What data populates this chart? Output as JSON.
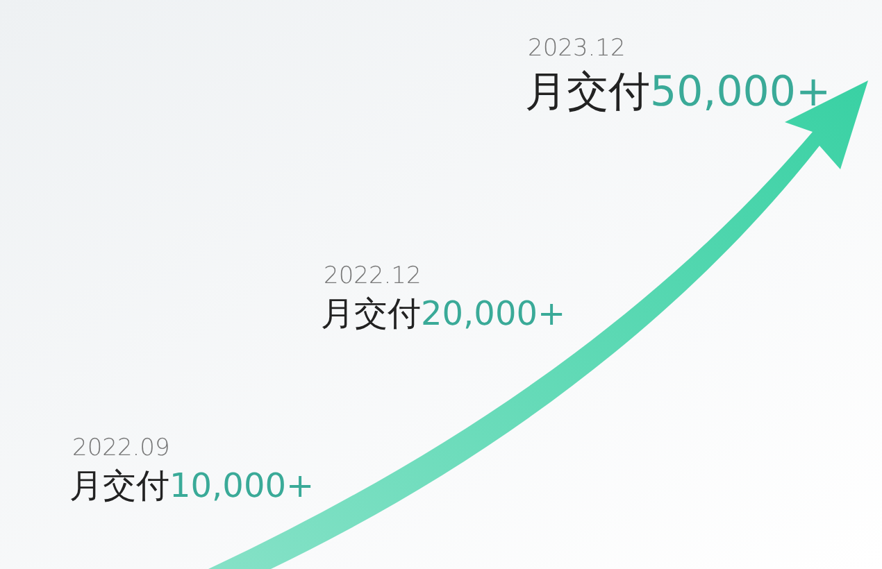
{
  "chart_data": {
    "type": "other",
    "categories": [
      "2022.09",
      "2022.12",
      "2023.12"
    ],
    "values": [
      10000,
      20000,
      50000
    ],
    "value_labels": [
      "月交付10,000+",
      "月交付20,000+",
      "月交付50,000+"
    ],
    "color": "#3aaa98"
  }
}
